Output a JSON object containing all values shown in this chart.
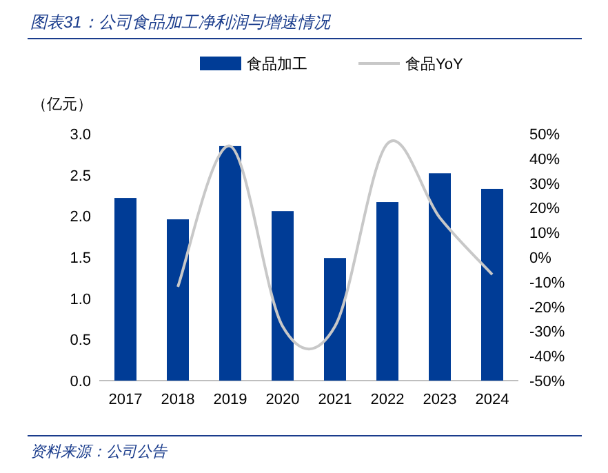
{
  "chart_data": {
    "type": "bar",
    "title": "图表31：公司食品加工净利润与增速情况",
    "ylabel": "（亿元）",
    "categories": [
      "2017",
      "2018",
      "2019",
      "2020",
      "2021",
      "2022",
      "2023",
      "2024"
    ],
    "series": [
      {
        "name": "食品加工",
        "color": "#003c96",
        "values": [
          2.22,
          1.96,
          2.85,
          2.06,
          1.49,
          2.17,
          2.52,
          2.33
        ]
      },
      {
        "name": "食品YoY",
        "type": "line",
        "axis": "y2",
        "color": "#c8c8c8",
        "values": [
          null,
          -12,
          45,
          -28,
          -28,
          46,
          16,
          -7
        ]
      }
    ],
    "ylim": [
      0,
      3
    ],
    "yticks": [
      {
        "value": 0,
        "label": "0.0"
      },
      {
        "value": 0.5,
        "label": "0.5"
      },
      {
        "value": 1,
        "label": "1.0"
      },
      {
        "value": 1.5,
        "label": "1.5"
      },
      {
        "value": 2,
        "label": "2.0"
      },
      {
        "value": 2.5,
        "label": "2.5"
      },
      {
        "value": 3,
        "label": "3.0"
      }
    ],
    "y2lim": [
      -50,
      50
    ],
    "y2ticks": [
      {
        "value": -50,
        "label": "-50%"
      },
      {
        "value": -40,
        "label": "-40%"
      },
      {
        "value": -30,
        "label": "-30%"
      },
      {
        "value": -20,
        "label": "-20%"
      },
      {
        "value": -10,
        "label": "-10%"
      },
      {
        "value": 0,
        "label": "0%"
      },
      {
        "value": 10,
        "label": "10%"
      },
      {
        "value": 20,
        "label": "20%"
      },
      {
        "value": 30,
        "label": "30%"
      },
      {
        "value": 40,
        "label": "40%"
      },
      {
        "value": 50,
        "label": "50%"
      }
    ],
    "legend": "top",
    "marker": "none",
    "line_style": "solid",
    "annotations": [
      "资料来源：公司公告"
    ]
  }
}
